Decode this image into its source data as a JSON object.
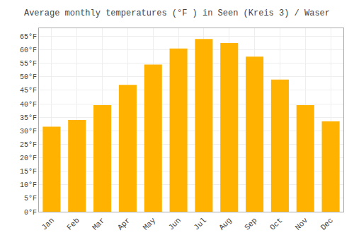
{
  "chart_data": {
    "type": "bar",
    "title": "Average monthly temperatures (°F ) in Seen (Kreis 3) / Waser",
    "categories": [
      "Jan",
      "Feb",
      "Mar",
      "Apr",
      "May",
      "Jun",
      "Jul",
      "Aug",
      "Sep",
      "Oct",
      "Nov",
      "Dec"
    ],
    "values": [
      31.5,
      34.0,
      39.5,
      47.0,
      54.5,
      60.5,
      64.0,
      62.5,
      57.5,
      49.0,
      39.5,
      33.5
    ],
    "color": "#FFB300",
    "ylim": [
      0,
      68
    ],
    "yticks": [
      {
        "value": 0,
        "label": "0°F"
      },
      {
        "value": 5,
        "label": "5°F"
      },
      {
        "value": 10,
        "label": "10°F"
      },
      {
        "value": 15,
        "label": "15°F"
      },
      {
        "value": 20,
        "label": "20°F"
      },
      {
        "value": 25,
        "label": "25°F"
      },
      {
        "value": 30,
        "label": "30°F"
      },
      {
        "value": 35,
        "label": "35°F"
      },
      {
        "value": 40,
        "label": "40°F"
      },
      {
        "value": 45,
        "label": "45°F"
      },
      {
        "value": 50,
        "label": "50°F"
      },
      {
        "value": 55,
        "label": "55°F"
      },
      {
        "value": 60,
        "label": "60°F"
      },
      {
        "value": 65,
        "label": "65°F"
      }
    ],
    "grid": true
  }
}
